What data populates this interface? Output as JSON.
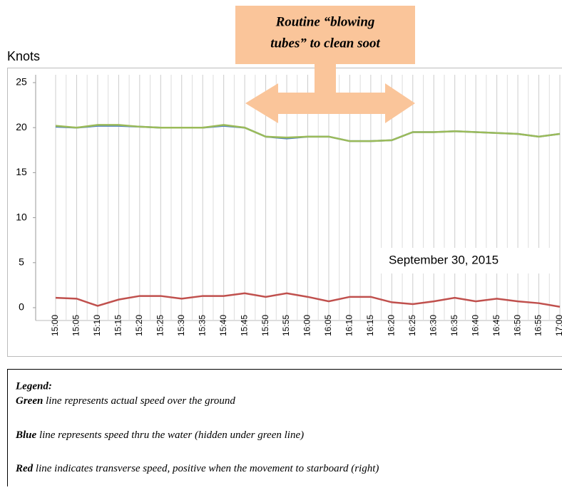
{
  "chart_data": {
    "type": "line",
    "y_label": "Knots",
    "annotation_lines": [
      "Routine “blowing",
      "tubes” to clean soot"
    ],
    "date_label": "September 30, 2015",
    "categories": [
      "15:00",
      "15:05",
      "15:10",
      "15:15",
      "15:20",
      "15:25",
      "15:30",
      "15:35",
      "15:40",
      "15:45",
      "15:50",
      "15:55",
      "16:00",
      "16:05",
      "16:10",
      "16:15",
      "16:20",
      "16:25",
      "16:30",
      "16:35",
      "16:40",
      "16:45",
      "16:50",
      "16:55",
      "17:00"
    ],
    "series": [
      {
        "color": "#4f81bd",
        "values": [
          20.1,
          20.0,
          20.2,
          20.2,
          20.1,
          20.0,
          20.0,
          20.0,
          20.2,
          20.0,
          19.0,
          18.8,
          19.0,
          19.0,
          18.5,
          18.5,
          18.6,
          19.5,
          19.5,
          19.6,
          19.5,
          19.4,
          19.3,
          19.0,
          19.3
        ]
      },
      {
        "color": "#9bbb59",
        "values": [
          20.2,
          20.0,
          20.3,
          20.3,
          20.1,
          20.0,
          20.0,
          20.0,
          20.3,
          20.0,
          19.0,
          18.9,
          19.0,
          19.0,
          18.5,
          18.5,
          18.6,
          19.5,
          19.5,
          19.6,
          19.5,
          19.4,
          19.3,
          19.0,
          19.3
        ]
      },
      {
        "color": "#c0504d",
        "values": [
          1.1,
          1.0,
          0.2,
          0.9,
          1.3,
          1.3,
          1.0,
          1.3,
          1.3,
          1.6,
          1.2,
          1.6,
          1.2,
          0.7,
          1.2,
          1.2,
          0.6,
          0.4,
          0.7,
          1.1,
          0.7,
          1.0,
          0.7,
          0.5,
          0.1
        ]
      }
    ],
    "ylim": [
      0,
      25
    ],
    "yticks": [
      0,
      5,
      10,
      15,
      20,
      25
    ],
    "grid": true
  },
  "legend": {
    "title": "Legend:",
    "lines": [
      {
        "bold": "Green",
        "text": "line represents actual speed over the ground"
      },
      {
        "bold": "Blue",
        "text": "line represents speed thru the water (hidden under green line)"
      },
      {
        "bold": "Red",
        "text": "line indicates transverse speed, positive when the movement to starboard (right)"
      }
    ]
  }
}
